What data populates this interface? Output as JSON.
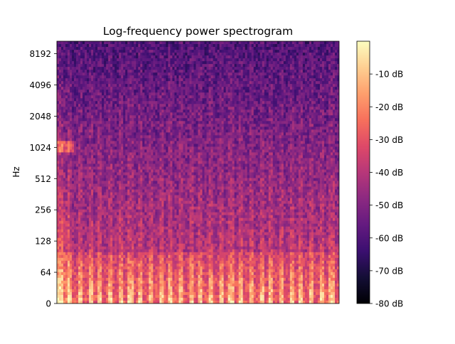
{
  "chart_data": {
    "type": "heatmap",
    "title": "Log-frequency power spectrogram",
    "xlabel": "",
    "ylabel": "Hz",
    "y_scale": "log",
    "y_ticks": [
      0,
      64,
      128,
      256,
      512,
      1024,
      2048,
      4096,
      8192
    ],
    "x_ticks": [],
    "colormap": "magma",
    "colorbar": {
      "range": [
        -80,
        0
      ],
      "ticks": [
        -10,
        -20,
        -30,
        -40,
        -50,
        -60,
        -70,
        -80
      ],
      "tick_labels": [
        "-10 dB",
        "-20 dB",
        "-30 dB",
        "-40 dB",
        "-50 dB",
        "-60 dB",
        "-70 dB",
        "-80 dB"
      ]
    },
    "grid": false
  },
  "colors": {
    "magma": [
      "#000004",
      "#140e36",
      "#3b0f70",
      "#641a80",
      "#8c2981",
      "#b73779",
      "#de4968",
      "#f7705c",
      "#fe9f6d",
      "#fecf92",
      "#fcfdbf"
    ]
  }
}
